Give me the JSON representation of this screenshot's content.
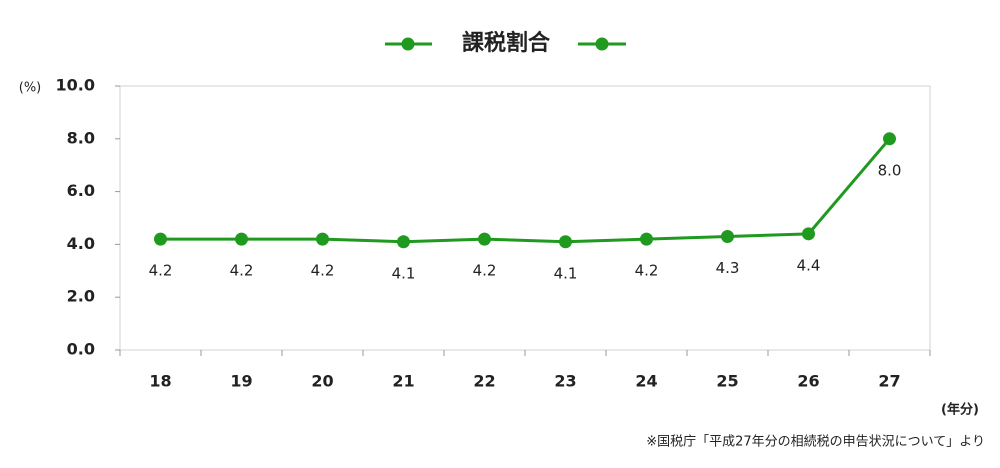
{
  "chart_data": {
    "type": "line",
    "y_label": "(%)",
    "x_label": "(年分)",
    "source": "※国税庁「平成27年分の相続税の申告状況について」より",
    "categories": [
      "18",
      "19",
      "20",
      "21",
      "22",
      "23",
      "24",
      "25",
      "26",
      "27"
    ],
    "series": [
      {
        "name": "課税割合",
        "color": "#1f9a1f",
        "values": [
          4.2,
          4.2,
          4.2,
          4.1,
          4.2,
          4.1,
          4.2,
          4.3,
          4.4,
          8.0
        ],
        "value_labels": [
          "4.2",
          "4.2",
          "4.2",
          "4.1",
          "4.2",
          "4.1",
          "4.2",
          "4.3",
          "4.4",
          "8.0"
        ]
      }
    ],
    "ylim": [
      0,
      10
    ],
    "yticks": [
      {
        "value": 0,
        "label": "0.0"
      },
      {
        "value": 2,
        "label": "2.0"
      },
      {
        "value": 4,
        "label": "4.0"
      },
      {
        "value": 6,
        "label": "6.0"
      },
      {
        "value": 8,
        "label": "8.0"
      },
      {
        "value": 10,
        "label": "10.0"
      }
    ],
    "legend": "top"
  }
}
